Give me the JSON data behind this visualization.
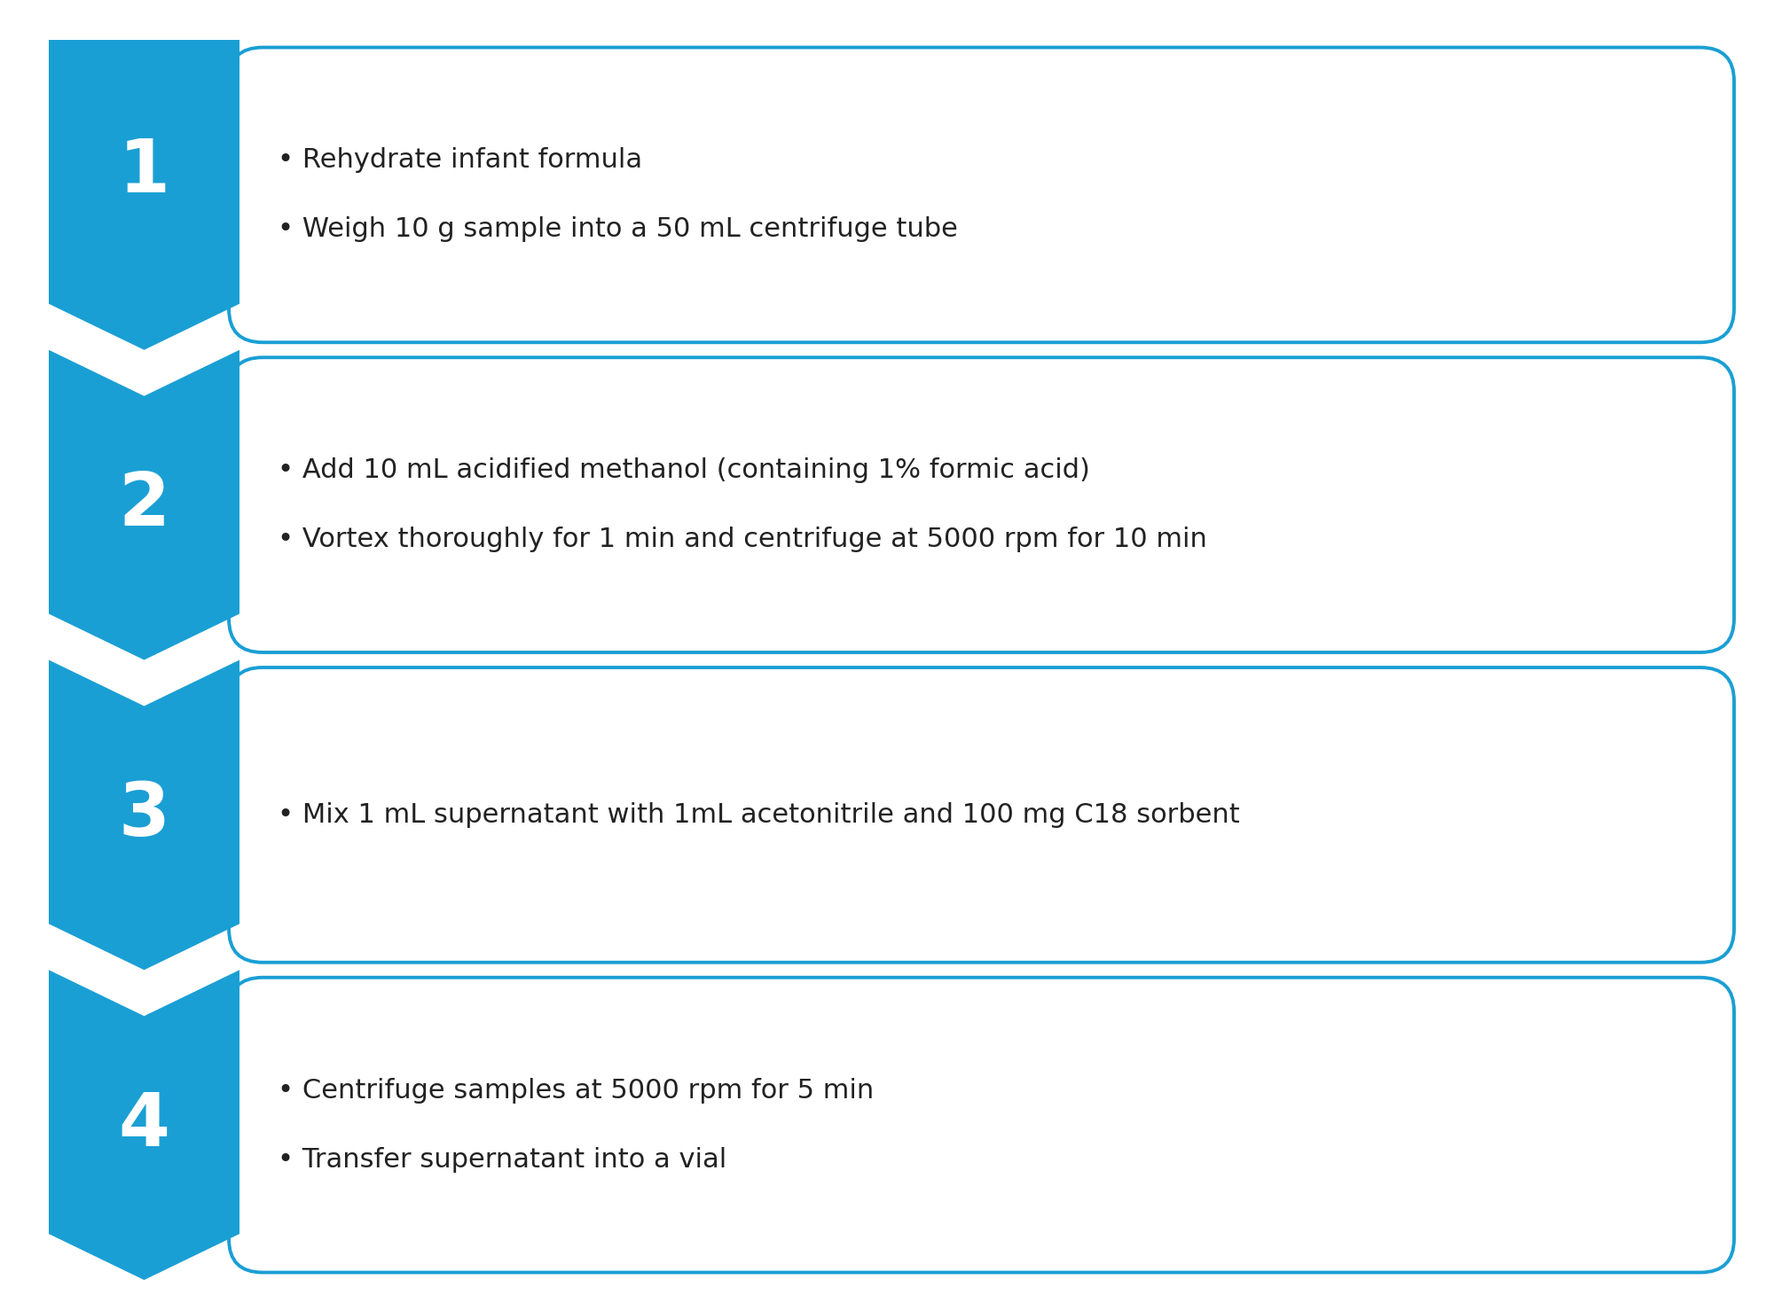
{
  "background_color": "#ffffff",
  "arrow_color": "#1a9fd4",
  "box_border_color": "#1a9fd4",
  "box_fill_color": "#ffffff",
  "number_color": "#ffffff",
  "text_color": "#222222",
  "steps": [
    {
      "number": "1",
      "lines": [
        "• Rehydrate infant formula",
        "• Weigh 10 g sample into a 50 mL centrifuge tube"
      ]
    },
    {
      "number": "2",
      "lines": [
        "• Add 10 mL acidified methanol (containing 1% formic acid)",
        "• Vortex thoroughly for 1 min and centrifuge at 5000 rpm for 10 min"
      ]
    },
    {
      "number": "3",
      "lines": [
        "• Mix 1 mL supernatant with 1mL acetonitrile and 100 mg C18 sorbent"
      ]
    },
    {
      "number": "4",
      "lines": [
        "• Centrifuge samples at 5000 rpm for 5 min",
        "• Transfer supernatant into a vial"
      ]
    }
  ],
  "figsize": [
    20.0,
    14.79
  ],
  "dpi": 100,
  "text_fontsize": 22,
  "number_fontsize": 60
}
